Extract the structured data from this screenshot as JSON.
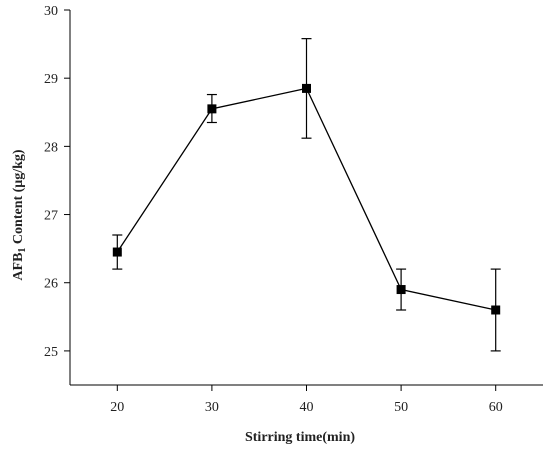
{
  "chart_data": {
    "type": "line",
    "title": "",
    "xlabel": "Stirring time(min)",
    "ylabel_prefix": "AFB",
    "ylabel_subscript": "1",
    "ylabel_suffix": " Content (μg/kg)",
    "xlim": [
      15,
      65
    ],
    "ylim": [
      24.5,
      30
    ],
    "xticks": [
      20,
      30,
      40,
      50,
      60
    ],
    "yticks": [
      25,
      26,
      27,
      28,
      29,
      30
    ],
    "grid": false,
    "marker": "square",
    "color": "#000000",
    "x": [
      20,
      30,
      40,
      50,
      60
    ],
    "series": [
      {
        "values": [
          26.45,
          28.55,
          28.85,
          25.9,
          25.6
        ],
        "error_low": [
          26.2,
          28.35,
          28.12,
          25.6,
          25.0
        ],
        "error_high": [
          26.7,
          28.76,
          29.58,
          26.2,
          26.2
        ]
      }
    ]
  }
}
